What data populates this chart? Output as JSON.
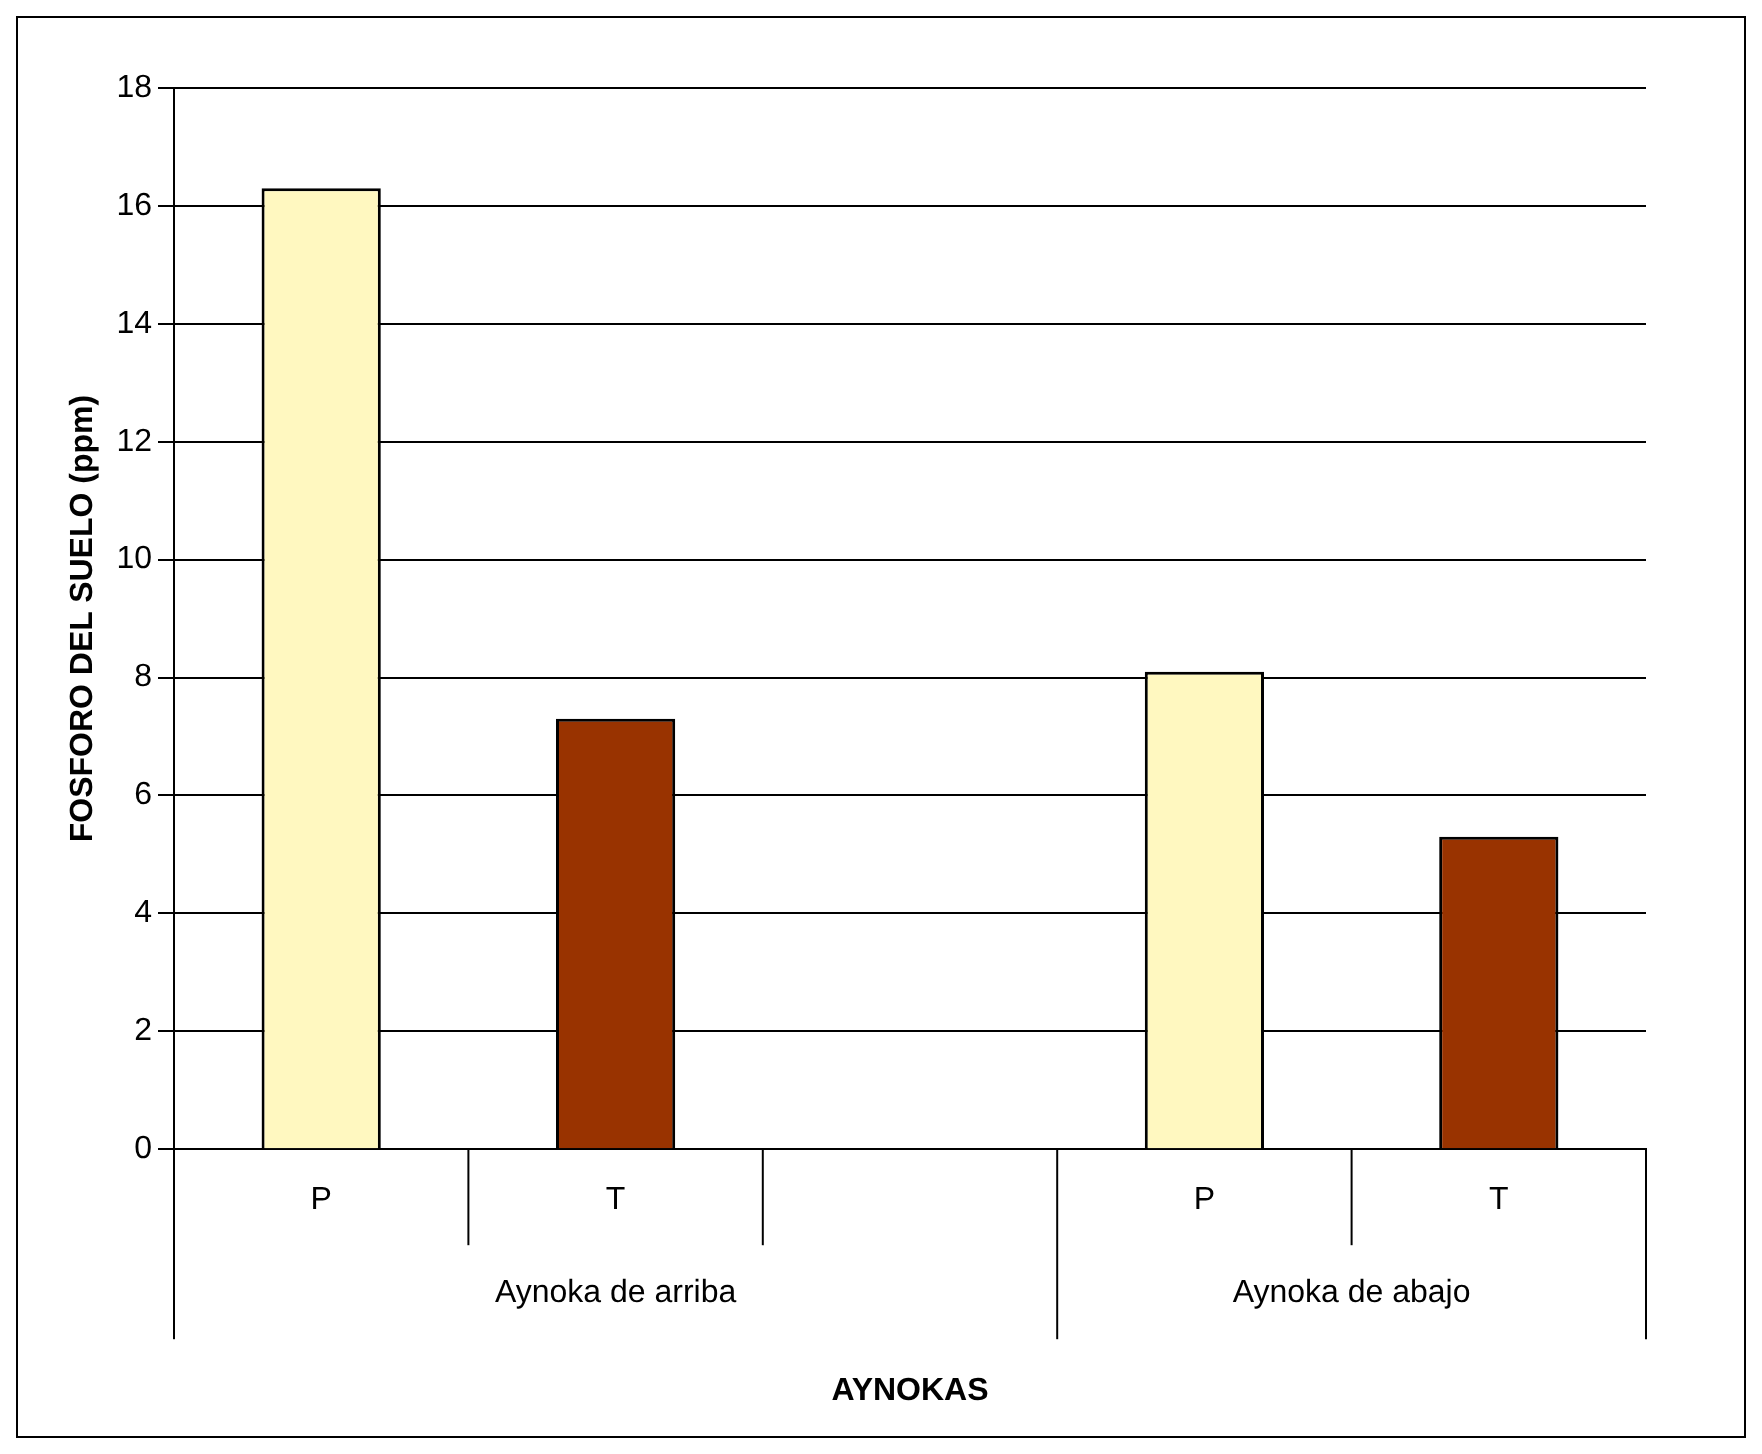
{
  "chart_data": {
    "type": "bar",
    "xlabel": "AYNOKAS",
    "ylabel": "FOSFORO DEL SUELO (ppm)",
    "categories": [
      "P",
      "T",
      null,
      "P",
      "T"
    ],
    "values": [
      16.3,
      7.3,
      null,
      8.1,
      5.3
    ],
    "colors": [
      "#fff8c0",
      "#993300",
      null,
      "#fff8c0",
      "#993300"
    ],
    "ylim": [
      0,
      18
    ],
    "yticks": [
      0,
      2,
      4,
      6,
      8,
      10,
      12,
      14,
      16,
      18
    ],
    "grid": "y",
    "annotations": [
      "Aynoka de arriba",
      "Aynoka de abajo"
    ]
  }
}
